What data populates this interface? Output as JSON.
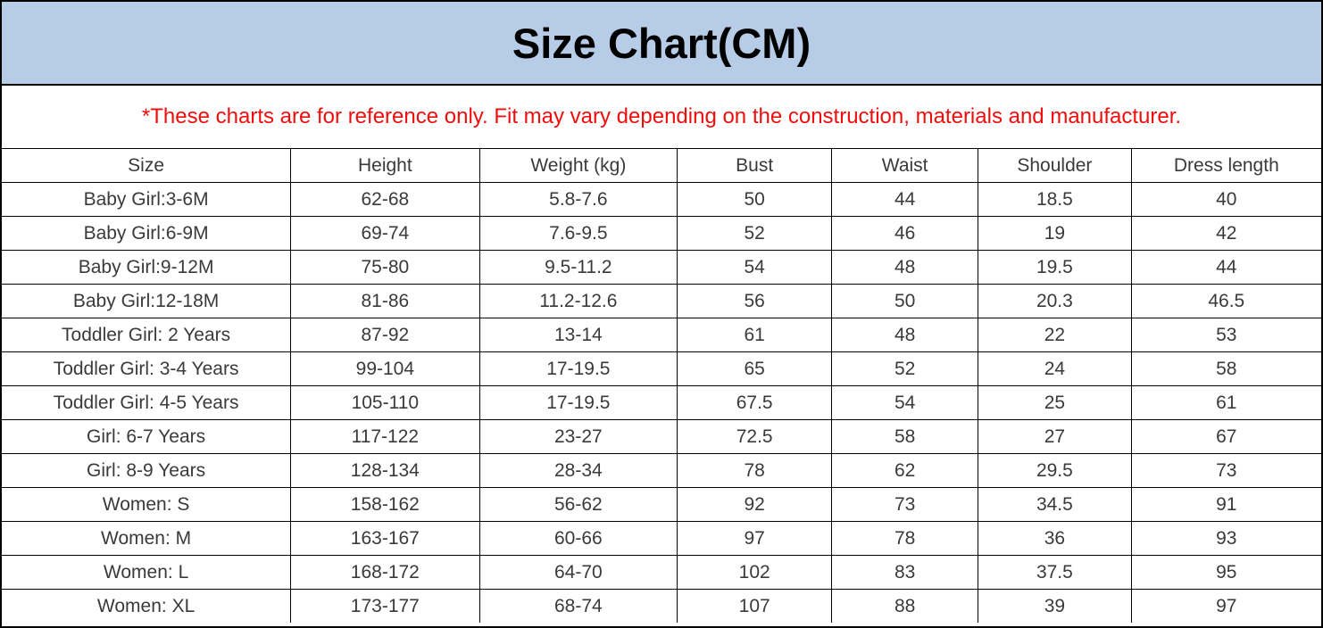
{
  "header": {
    "title": "Size Chart(CM)"
  },
  "disclaimer": {
    "text": "*These charts are for reference only. Fit may vary depending on the construction, materials and manufacturer."
  },
  "colors": {
    "title_background": "#b7cde7",
    "title_text": "#000000",
    "disclaimer_text": "#f20d0d",
    "table_text": "#3a3a3a",
    "border": "#000000"
  },
  "chart_data": {
    "type": "table",
    "title": "Size Chart(CM)",
    "columns": [
      "Size",
      "Height",
      "Weight (kg)",
      "Bust",
      "Waist",
      "Shoulder",
      "Dress length"
    ],
    "rows": [
      [
        "Baby Girl:3-6M",
        "62-68",
        "5.8-7.6",
        "50",
        "44",
        "18.5",
        "40"
      ],
      [
        "Baby Girl:6-9M",
        "69-74",
        "7.6-9.5",
        "52",
        "46",
        "19",
        "42"
      ],
      [
        "Baby Girl:9-12M",
        "75-80",
        "9.5-11.2",
        "54",
        "48",
        "19.5",
        "44"
      ],
      [
        "Baby Girl:12-18M",
        "81-86",
        "11.2-12.6",
        "56",
        "50",
        "20.3",
        "46.5"
      ],
      [
        "Toddler Girl: 2 Years",
        "87-92",
        "13-14",
        "61",
        "48",
        "22",
        "53"
      ],
      [
        "Toddler Girl: 3-4 Years",
        "99-104",
        "17-19.5",
        "65",
        "52",
        "24",
        "58"
      ],
      [
        "Toddler Girl: 4-5 Years",
        "105-110",
        "17-19.5",
        "67.5",
        "54",
        "25",
        "61"
      ],
      [
        "Girl: 6-7 Years",
        "117-122",
        "23-27",
        "72.5",
        "58",
        "27",
        "67"
      ],
      [
        "Girl: 8-9 Years",
        "128-134",
        "28-34",
        "78",
        "62",
        "29.5",
        "73"
      ],
      [
        "Women: S",
        "158-162",
        "56-62",
        "92",
        "73",
        "34.5",
        "91"
      ],
      [
        "Women: M",
        "163-167",
        "60-66",
        "97",
        "78",
        "36",
        "93"
      ],
      [
        "Women: L",
        "168-172",
        "64-70",
        "102",
        "83",
        "37.5",
        "95"
      ],
      [
        "Women: XL",
        "173-177",
        "68-74",
        "107",
        "88",
        "39",
        "97"
      ]
    ]
  }
}
